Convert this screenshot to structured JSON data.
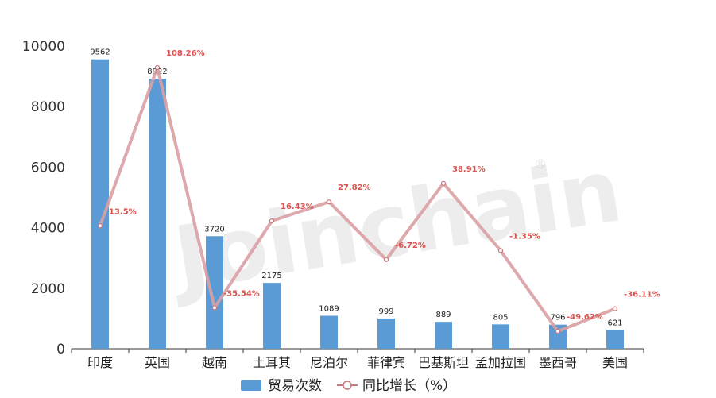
{
  "watermark": {
    "text": "Joinchain",
    "mark": "®"
  },
  "chart_data": {
    "type": "bar",
    "categories": [
      "印度",
      "英国",
      "越南",
      "土耳其",
      "尼泊尔",
      "菲律宾",
      "巴基斯坦",
      "孟加拉国",
      "墨西哥",
      "美国"
    ],
    "series": [
      {
        "name": "贸易次数",
        "type": "bar",
        "color": "#5b9bd5",
        "values": [
          9562,
          8922,
          3720,
          2175,
          1089,
          999,
          889,
          805,
          796,
          621
        ]
      },
      {
        "name": "同比增长（%）",
        "type": "line",
        "color": "#d9a0a3",
        "values": [
          13.5,
          108.26,
          -35.54,
          16.43,
          27.82,
          -6.72,
          38.91,
          -1.35,
          -49.62,
          -36.11
        ],
        "labels": [
          "13.5%",
          "108.26%",
          "-35.54%",
          "16.43%",
          "27.82%",
          "-6.72%",
          "38.91%",
          "-1.35%",
          "-49.62%",
          "-36.11%"
        ]
      }
    ],
    "y_ticks": [
      "0",
      "2000",
      "4000",
      "6000",
      "8000",
      "10000"
    ],
    "ylim": [
      0,
      10000
    ],
    "legend": {
      "position": "bottom"
    },
    "grid": false
  }
}
